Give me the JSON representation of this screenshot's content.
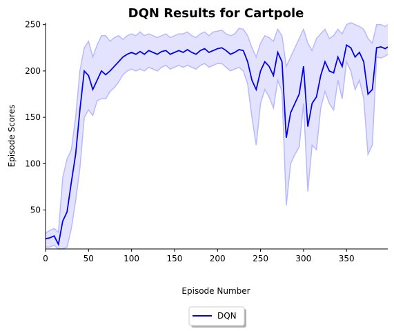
{
  "chart_data": {
    "type": "line",
    "title": "DQN Results for Cartpole",
    "xlabel": "Episode Number",
    "ylabel": "Episode Scores",
    "xlim": [
      0,
      398
    ],
    "ylim": [
      8,
      252
    ],
    "xticks": [
      0,
      50,
      100,
      150,
      200,
      250,
      300,
      350
    ],
    "yticks": [
      50,
      100,
      150,
      200,
      250
    ],
    "grid": false,
    "legend_position": "bottom-center",
    "series": [
      {
        "name": "DQN",
        "color": "#0000ee",
        "band_color": "#ccccff",
        "x": [
          0,
          5,
          10,
          15,
          20,
          25,
          30,
          35,
          40,
          45,
          50,
          55,
          60,
          65,
          70,
          75,
          80,
          85,
          90,
          95,
          100,
          105,
          110,
          115,
          120,
          125,
          130,
          135,
          140,
          145,
          150,
          155,
          160,
          165,
          170,
          175,
          180,
          185,
          190,
          195,
          200,
          205,
          210,
          215,
          220,
          225,
          230,
          235,
          240,
          245,
          250,
          255,
          260,
          265,
          270,
          275,
          280,
          285,
          290,
          295,
          300,
          305,
          310,
          315,
          320,
          325,
          330,
          335,
          340,
          345,
          350,
          355,
          360,
          365,
          370,
          375,
          380,
          385,
          390,
          395,
          398
        ],
        "mean": [
          19,
          20,
          22,
          13,
          38,
          48,
          80,
          110,
          158,
          200,
          195,
          180,
          190,
          200,
          196,
          200,
          205,
          210,
          215,
          218,
          220,
          218,
          221,
          218,
          222,
          220,
          218,
          221,
          222,
          218,
          220,
          222,
          220,
          223,
          220,
          218,
          222,
          224,
          220,
          222,
          224,
          225,
          222,
          218,
          220,
          223,
          222,
          210,
          190,
          180,
          200,
          210,
          205,
          195,
          220,
          210,
          128,
          155,
          165,
          175,
          205,
          140,
          165,
          172,
          195,
          210,
          200,
          198,
          215,
          205,
          228,
          225,
          215,
          220,
          210,
          175,
          180,
          225,
          226,
          224,
          226
        ],
        "upper": [
          25,
          28,
          30,
          26,
          85,
          105,
          115,
          150,
          200,
          225,
          232,
          215,
          228,
          238,
          238,
          232,
          236,
          238,
          234,
          238,
          240,
          238,
          242,
          238,
          240,
          238,
          236,
          238,
          240,
          236,
          238,
          240,
          240,
          242,
          238,
          236,
          240,
          242,
          238,
          242,
          243,
          244,
          240,
          238,
          240,
          246,
          245,
          238,
          225,
          215,
          230,
          238,
          236,
          232,
          245,
          238,
          205,
          215,
          225,
          235,
          245,
          230,
          222,
          235,
          240,
          245,
          235,
          238,
          245,
          240,
          250,
          252,
          250,
          248,
          245,
          235,
          230,
          250,
          250,
          248,
          250
        ],
        "lower": [
          10,
          10,
          12,
          8,
          8,
          10,
          30,
          60,
          95,
          150,
          158,
          152,
          168,
          170,
          170,
          178,
          182,
          188,
          196,
          200,
          202,
          200,
          202,
          200,
          204,
          202,
          200,
          204,
          206,
          202,
          204,
          206,
          204,
          206,
          204,
          202,
          206,
          208,
          204,
          206,
          208,
          208,
          204,
          200,
          202,
          204,
          200,
          186,
          150,
          120,
          165,
          180,
          172,
          160,
          190,
          178,
          55,
          100,
          110,
          118,
          165,
          70,
          120,
          115,
          160,
          178,
          165,
          158,
          190,
          170,
          210,
          200,
          180,
          190,
          170,
          110,
          120,
          215,
          214,
          216,
          218
        ]
      }
    ]
  }
}
